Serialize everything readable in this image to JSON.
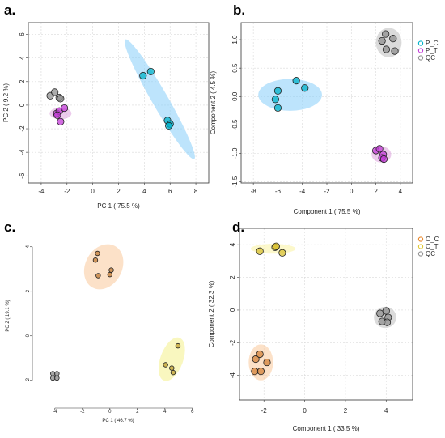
{
  "chart_data": [
    {
      "id": "a",
      "panel_label": "a.",
      "type": "scatter",
      "xlabel": "PC 1 ( 75.5 %)",
      "ylabel": "PC 2 ( 9.2 %)",
      "xlim": [
        -5,
        9
      ],
      "ylim": [
        -6.6,
        7.0
      ],
      "xticks": [
        -4,
        -2,
        0,
        2,
        4,
        6,
        8
      ],
      "yticks": [
        -6,
        -4,
        -2,
        0,
        2,
        4,
        6
      ],
      "grid": true,
      "box": true,
      "legend": null,
      "series": [
        {
          "color": "#00b2c9",
          "points": [
            [
              3.9,
              2.5
            ],
            [
              4.5,
              2.85
            ],
            [
              5.8,
              -1.3
            ],
            [
              6.0,
              -1.6
            ],
            [
              5.9,
              -1.75
            ]
          ]
        },
        {
          "color": "#c23bd6",
          "points": [
            [
              -2.8,
              -0.7
            ],
            [
              -2.6,
              -0.5
            ],
            [
              -2.2,
              -0.25
            ],
            [
              -2.5,
              -1.4
            ],
            [
              -2.75,
              -0.85
            ]
          ]
        },
        {
          "color": "#909090",
          "points": [
            [
              -3.3,
              0.8
            ],
            [
              -2.95,
              1.1
            ],
            [
              -2.6,
              0.65
            ],
            [
              -2.5,
              0.55
            ]
          ]
        }
      ],
      "ellipses": [
        {
          "color": "#87cefa",
          "cx": 5.2,
          "cy": 0.5,
          "rx": 5.6,
          "ry": 0.65,
          "angle": -60
        },
        {
          "color": "#dda0dd",
          "cx": -2.5,
          "cy": -0.7,
          "rx": 0.85,
          "ry": 0.5,
          "angle": 0
        }
      ]
    },
    {
      "id": "b",
      "panel_label": "b.",
      "type": "scatter",
      "xlabel": "Component 1 ( 75.5 %)",
      "ylabel": "Component 2 ( 4.5 %)",
      "xlim": [
        -9,
        5
      ],
      "ylim": [
        -1.52,
        1.3
      ],
      "xticks": [
        -8,
        -6,
        -4,
        -2,
        0,
        2,
        4
      ],
      "yticks": [
        -1.5,
        -1.0,
        -0.5,
        0.0,
        0.5,
        1.0
      ],
      "ytick_labels": [
        "-1.5",
        "-1.0",
        "-0.5",
        "0.0",
        "0.5",
        "1.0"
      ],
      "grid": true,
      "box": true,
      "legend": {
        "position": "top-right",
        "labels": [
          "P_C",
          "P_T",
          "QC"
        ],
        "colors": [
          "#00b2c9",
          "#c23bd6",
          "#909090"
        ]
      },
      "series": [
        {
          "name": "P_C",
          "color": "#00b2c9",
          "points": [
            [
              -6.0,
              0.1
            ],
            [
              -6.2,
              -0.05
            ],
            [
              -6.0,
              -0.2
            ],
            [
              -4.5,
              0.28
            ],
            [
              -3.8,
              0.15
            ]
          ]
        },
        {
          "name": "P_T",
          "color": "#c23bd6",
          "points": [
            [
              2.0,
              -0.95
            ],
            [
              2.3,
              -0.92
            ],
            [
              2.6,
              -1.02
            ],
            [
              2.5,
              -1.08
            ],
            [
              2.65,
              -1.1
            ]
          ]
        },
        {
          "name": "QC",
          "color": "#909090",
          "points": [
            [
              2.8,
              1.1
            ],
            [
              3.4,
              1.02
            ],
            [
              2.5,
              0.98
            ],
            [
              2.85,
              0.83
            ],
            [
              3.55,
              0.8
            ]
          ]
        }
      ],
      "ellipses": [
        {
          "color": "#87cefa",
          "cx": -5.0,
          "cy": 0.03,
          "rx": 2.6,
          "ry": 0.28,
          "angle": 0
        },
        {
          "color": "#dda0dd",
          "cx": 2.45,
          "cy": -1.02,
          "rx": 0.8,
          "ry": 0.14,
          "angle": 0
        },
        {
          "color": "#bdbdbd",
          "cx": 3.05,
          "cy": 0.95,
          "rx": 1.05,
          "ry": 0.26,
          "angle": 0
        }
      ]
    },
    {
      "id": "c",
      "panel_label": "c.",
      "type": "scatter",
      "xlabel": "PC 1 ( 46.7 %)",
      "ylabel": "PC 2 ( 19.1 %)",
      "xlim": [
        -5.4,
        6.6
      ],
      "ylim": [
        -3.1,
        4.9
      ],
      "xticks": [
        -4,
        -2,
        0,
        2,
        4,
        6
      ],
      "yticks": [
        -2,
        0,
        2,
        4
      ],
      "grid": false,
      "box": false,
      "legend": null,
      "series": [
        {
          "color": "#c07a36",
          "points": [
            [
              -0.9,
              3.7
            ],
            [
              -1.05,
              3.4
            ],
            [
              -0.85,
              2.7
            ],
            [
              0.0,
              2.75
            ],
            [
              0.1,
              2.95
            ]
          ]
        },
        {
          "color": "#c0a030",
          "points": [
            [
              4.95,
              -0.45
            ],
            [
              4.05,
              -1.3
            ],
            [
              4.5,
              -1.45
            ],
            [
              4.6,
              -1.65
            ]
          ]
        },
        {
          "color": "#888888",
          "points": [
            [
              -4.15,
              -1.7
            ],
            [
              -3.85,
              -1.7
            ],
            [
              -4.15,
              -1.9
            ],
            [
              -3.85,
              -1.9
            ]
          ]
        }
      ],
      "ellipses": [
        {
          "color": "#f9c99a",
          "cx": -0.45,
          "cy": 3.1,
          "rx": 1.05,
          "ry": 1.35,
          "angle": -28
        },
        {
          "color": "#f4f08a",
          "cx": 4.5,
          "cy": -1.05,
          "rx": 0.65,
          "ry": 1.3,
          "angle": -20
        }
      ]
    },
    {
      "id": "d",
      "panel_label": "d.",
      "type": "scatter",
      "xlabel": "Component 1 ( 33.5 %)",
      "ylabel": "Component 2 ( 32.3 %)",
      "xlim": [
        -3.2,
        5.3
      ],
      "ylim": [
        -5.5,
        5.0
      ],
      "xticks": [
        -2,
        0,
        2,
        4
      ],
      "yticks": [
        -4,
        -2,
        0,
        2,
        4
      ],
      "grid": true,
      "box": true,
      "legend": {
        "position": "top-right",
        "labels": [
          "O_C",
          "O_T",
          "QC"
        ],
        "colors": [
          "#e8862a",
          "#e0c830",
          "#909090"
        ]
      },
      "series": [
        {
          "name": "O_C",
          "color": "#d4823a",
          "points": [
            [
              -2.4,
              -3.0
            ],
            [
              -2.2,
              -2.7
            ],
            [
              -1.85,
              -3.2
            ],
            [
              -2.45,
              -3.75
            ],
            [
              -2.15,
              -3.75
            ]
          ]
        },
        {
          "name": "O_T",
          "color": "#d8c030",
          "points": [
            [
              -2.2,
              3.6
            ],
            [
              -1.45,
              3.85
            ],
            [
              -1.4,
              3.9
            ],
            [
              -1.1,
              3.5
            ]
          ]
        },
        {
          "name": "QC",
          "color": "#909090",
          "points": [
            [
              3.7,
              -0.2
            ],
            [
              4.0,
              -0.05
            ],
            [
              4.1,
              -0.45
            ],
            [
              3.8,
              -0.7
            ],
            [
              4.05,
              -0.75
            ]
          ]
        }
      ],
      "ellipses": [
        {
          "color": "#f9c99a",
          "cx": -2.15,
          "cy": -3.2,
          "rx": 0.6,
          "ry": 1.1,
          "angle": 0
        },
        {
          "color": "#f9f2a0",
          "cx": -1.55,
          "cy": 3.75,
          "rx": 1.1,
          "ry": 0.3,
          "angle": 0
        },
        {
          "color": "#bdbdbd",
          "cx": 3.95,
          "cy": -0.45,
          "rx": 0.55,
          "ry": 0.65,
          "angle": 0
        }
      ]
    }
  ]
}
